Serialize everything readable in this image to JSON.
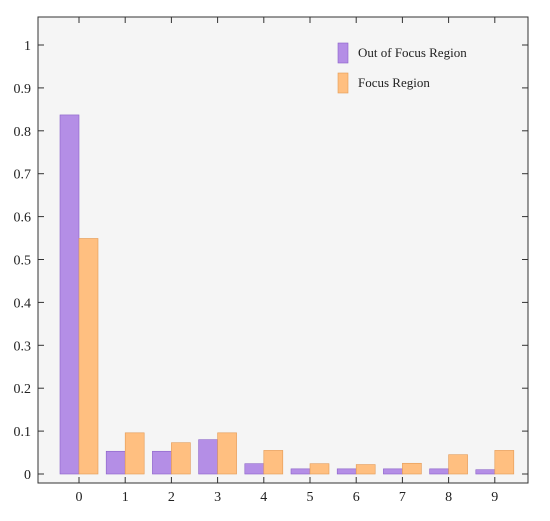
{
  "chart_data": {
    "type": "bar",
    "categories": [
      "0",
      "1",
      "2",
      "3",
      "4",
      "5",
      "6",
      "7",
      "8",
      "9"
    ],
    "series": [
      {
        "name": "Out of Focus Region",
        "color": "#b48ee6",
        "edge": "#8a62c8",
        "values": [
          0.837,
          0.053,
          0.053,
          0.08,
          0.024,
          0.012,
          0.012,
          0.012,
          0.012,
          0.01
        ]
      },
      {
        "name": "Focus Region",
        "color": "#ffbf80",
        "edge": "#e39a55",
        "values": [
          0.549,
          0.096,
          0.073,
          0.096,
          0.055,
          0.024,
          0.022,
          0.025,
          0.045,
          0.055
        ]
      }
    ],
    "ylim": [
      0,
      1.05
    ],
    "yticks": [
      0,
      0.1,
      0.2,
      0.3,
      0.4,
      0.5,
      0.6,
      0.7,
      0.8,
      0.9,
      1
    ],
    "ytick_labels": [
      "0",
      "0.1",
      "0.2",
      "0.3",
      "0.4",
      "0.5",
      "0.6",
      "0.7",
      "0.8",
      "0.9",
      "1"
    ],
    "xlabel": "",
    "ylabel": "",
    "title": "",
    "grid": false,
    "legend_position": "top-right",
    "plot_background": "#f5f5f5",
    "axis_color": "#333333"
  }
}
